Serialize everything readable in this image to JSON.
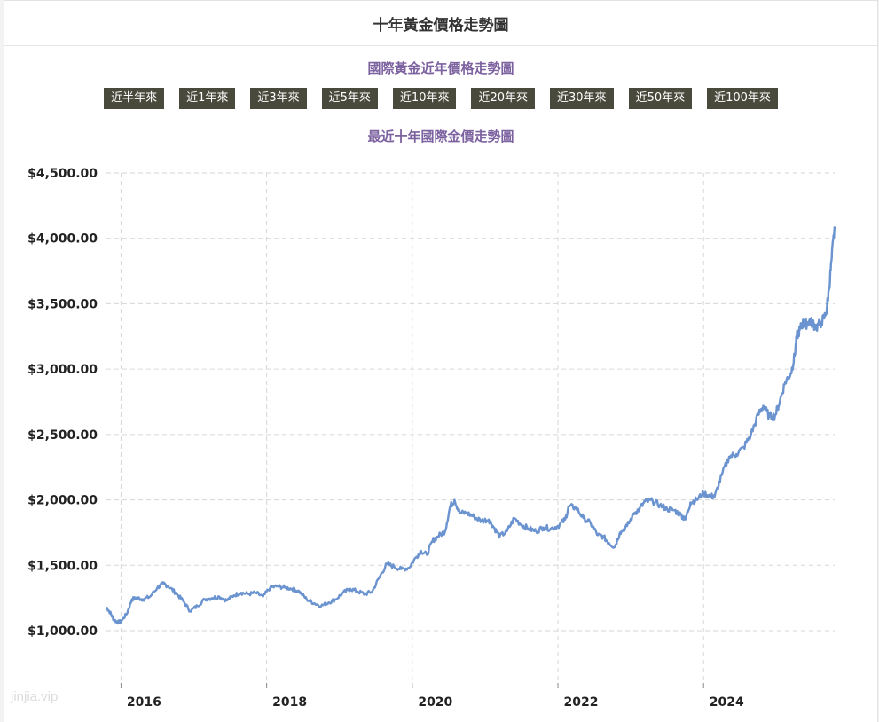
{
  "page": {
    "header_title": "十年黃金價格走勢圖",
    "subtitle": "國際黃金近年價格走勢圖",
    "tabs": [
      "近半年來",
      "近1年來",
      "近3年來",
      "近5年來",
      "近10年來",
      "近20年來",
      "近30年來",
      "近50年來",
      "近100年來"
    ],
    "watermark": "jinjia.vip"
  },
  "chart_data": {
    "type": "line",
    "title": "最近十年國際金價走勢圖",
    "xlabel": "",
    "ylabel": "",
    "x_ticks": [
      "2016",
      "2018",
      "2020",
      "2022",
      "2024"
    ],
    "y_ticks": [
      "$1,000.00",
      "$1,500.00",
      "$2,000.00",
      "$2,500.00",
      "$3,000.00",
      "$3,500.00",
      "$4,000.00",
      "$4,500.00"
    ],
    "xlim": [
      2015.8,
      2025.8
    ],
    "ylim": [
      600,
      4500
    ],
    "grid": true,
    "line_color": "#6a93cf",
    "series": [
      {
        "x": [
          2015.8,
          2015.85,
          2015.9,
          2015.95,
          2016.0,
          2016.08,
          2016.15,
          2016.22,
          2016.3,
          2016.4,
          2016.5,
          2016.58,
          2016.65,
          2016.75,
          2016.85,
          2016.95,
          2017.05,
          2017.15,
          2017.25,
          2017.35,
          2017.45,
          2017.55,
          2017.65,
          2017.75,
          2017.85,
          2017.95,
          2018.05,
          2018.15,
          2018.25,
          2018.35,
          2018.45,
          2018.55,
          2018.65,
          2018.75,
          2018.85,
          2018.95,
          2019.05,
          2019.15,
          2019.25,
          2019.35,
          2019.45,
          2019.55,
          2019.65,
          2019.75,
          2019.85,
          2019.95,
          2020.05,
          2020.12,
          2020.2,
          2020.28,
          2020.35,
          2020.45,
          2020.52,
          2020.58,
          2020.65,
          2020.75,
          2020.85,
          2020.95,
          2021.05,
          2021.12,
          2021.2,
          2021.3,
          2021.4,
          2021.5,
          2021.6,
          2021.7,
          2021.8,
          2021.9,
          2022.0,
          2022.1,
          2022.15,
          2022.25,
          2022.35,
          2022.45,
          2022.55,
          2022.62,
          2022.7,
          2022.78,
          2022.85,
          2022.95,
          2023.05,
          2023.12,
          2023.2,
          2023.3,
          2023.4,
          2023.5,
          2023.6,
          2023.7,
          2023.75,
          2023.82,
          2023.9,
          2024.0,
          2024.1,
          2024.15,
          2024.25,
          2024.35,
          2024.45,
          2024.55,
          2024.65,
          2024.75,
          2024.82,
          2024.9,
          2024.98,
          2025.05,
          2025.12,
          2025.2,
          2025.25,
          2025.28,
          2025.32,
          2025.36,
          2025.4,
          2025.45,
          2025.5,
          2025.55,
          2025.62,
          2025.68,
          2025.72,
          2025.76,
          2025.8
        ],
        "y": [
          1180,
          1140,
          1085,
          1065,
          1070,
          1130,
          1240,
          1250,
          1240,
          1260,
          1330,
          1360,
          1340,
          1290,
          1230,
          1150,
          1190,
          1240,
          1250,
          1260,
          1230,
          1270,
          1290,
          1280,
          1290,
          1260,
          1330,
          1340,
          1330,
          1320,
          1300,
          1240,
          1210,
          1190,
          1215,
          1240,
          1290,
          1320,
          1300,
          1280,
          1300,
          1410,
          1510,
          1490,
          1470,
          1480,
          1560,
          1610,
          1580,
          1690,
          1720,
          1760,
          1950,
          2000,
          1900,
          1900,
          1870,
          1840,
          1850,
          1790,
          1720,
          1760,
          1860,
          1810,
          1780,
          1760,
          1790,
          1780,
          1800,
          1850,
          1950,
          1940,
          1860,
          1820,
          1730,
          1720,
          1670,
          1640,
          1750,
          1800,
          1900,
          1930,
          1990,
          1990,
          1960,
          1930,
          1920,
          1880,
          1850,
          1980,
          2000,
          2050,
          2030,
          2020,
          2190,
          2330,
          2350,
          2400,
          2500,
          2650,
          2720,
          2640,
          2640,
          2760,
          2900,
          2970,
          3100,
          3250,
          3300,
          3350,
          3340,
          3370,
          3350,
          3320,
          3360,
          3420,
          3600,
          3850,
          4090
        ]
      }
    ]
  }
}
